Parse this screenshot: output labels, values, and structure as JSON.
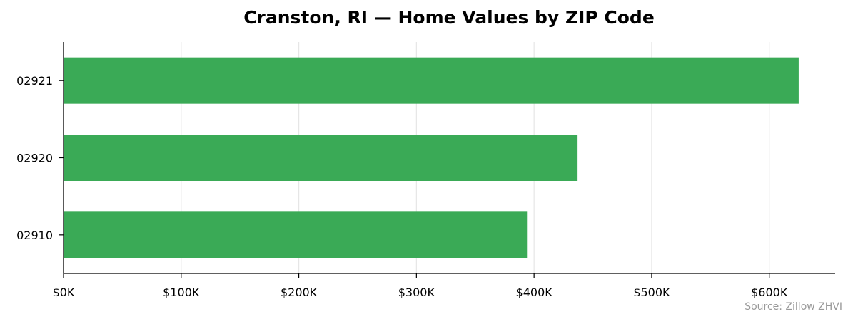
{
  "chart_data": {
    "type": "bar",
    "orientation": "horizontal",
    "title": "Cranston, RI — Home Values by ZIP Code",
    "categories": [
      "02921",
      "02920",
      "02910"
    ],
    "values": [
      625000,
      437000,
      394000
    ],
    "xlim": [
      0,
      656000
    ],
    "x_ticks": [
      0,
      100000,
      200000,
      300000,
      400000,
      500000,
      600000
    ],
    "x_tick_labels": [
      "$0K",
      "$100K",
      "$200K",
      "$300K",
      "$400K",
      "$500K",
      "$600K"
    ],
    "xlabel": "",
    "ylabel": "",
    "grid": "vertical",
    "legend": "none",
    "source": "Source: Zillow ZHVI",
    "colors": {
      "bar": "#36a853",
      "grid": "#e6e6e6",
      "axis": "#000000"
    }
  }
}
